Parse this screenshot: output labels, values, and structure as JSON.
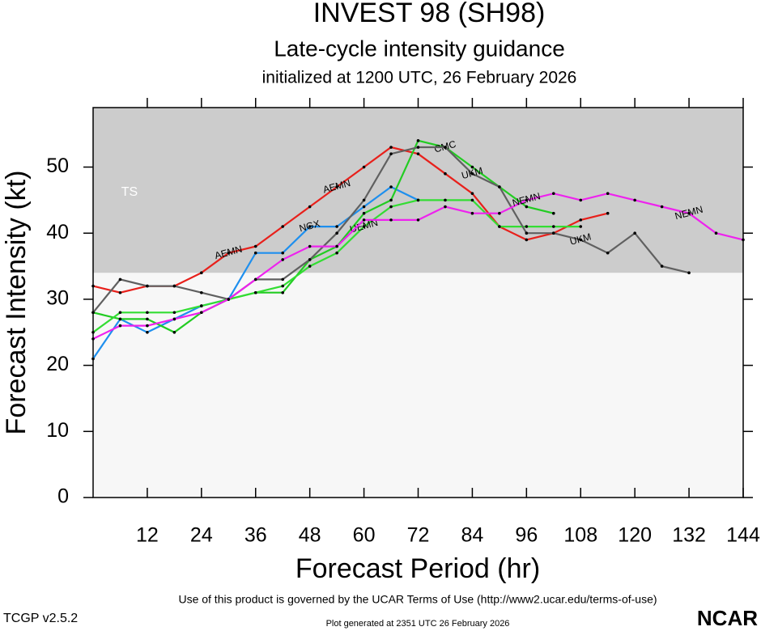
{
  "chart_data": {
    "type": "line",
    "title": "INVEST 98 (SH98)",
    "subtitle": "Late-cycle intensity guidance",
    "initialized": "initialized at 1200 UTC, 26 February 2026",
    "x_label": "Forecast Period (hr)",
    "y_label": "Forecast Intensity (kt)",
    "xlim": [
      0,
      144
    ],
    "xticks": [
      12,
      24,
      36,
      48,
      60,
      72,
      84,
      96,
      108,
      120,
      132,
      144
    ],
    "ylim": [
      0,
      59
    ],
    "yticks": [
      0,
      10,
      20,
      30,
      40,
      50
    ],
    "ts_threshold": 34,
    "ts_label": "TS",
    "x": [
      0,
      6,
      12,
      18,
      24,
      30,
      36,
      42,
      48,
      54,
      60,
      66,
      72,
      78,
      84,
      90,
      96,
      102,
      108,
      114,
      120,
      126,
      132,
      138,
      144
    ],
    "series": [
      {
        "name": "AEMN",
        "color": "#e8201b",
        "values": [
          32,
          31,
          32,
          32,
          34,
          37,
          38,
          41,
          44,
          47,
          50,
          53,
          52,
          49,
          46,
          41,
          39,
          40,
          42,
          43,
          null,
          null,
          null,
          null,
          null
        ]
      },
      {
        "name": "NGX",
        "color": "#1e8fee",
        "values": [
          21,
          27,
          25,
          27,
          29,
          30,
          37,
          37,
          41,
          41,
          44,
          47,
          45,
          null,
          null,
          null,
          null,
          null,
          null,
          null,
          null,
          null,
          null,
          null,
          null
        ]
      },
      {
        "name": "CMC",
        "color": "#22cc22",
        "values": [
          28,
          27,
          27,
          25,
          28,
          30,
          31,
          31,
          36,
          38,
          43,
          45,
          54,
          53,
          50,
          47,
          44,
          43,
          null,
          null,
          null,
          null,
          null,
          null,
          null
        ]
      },
      {
        "name": "UEMN",
        "color": "#33dd33",
        "values": [
          25,
          28,
          28,
          28,
          29,
          30,
          31,
          32,
          35,
          37,
          41,
          44,
          45,
          45,
          45,
          41,
          41,
          41,
          41,
          null,
          null,
          null,
          null,
          null,
          null
        ]
      },
      {
        "name": "UKM",
        "color": "#606060",
        "values": [
          28,
          33,
          32,
          32,
          31,
          30,
          33,
          33,
          36,
          40,
          45,
          52,
          53,
          53,
          49,
          47,
          40,
          40,
          39,
          37,
          40,
          35,
          34,
          null,
          null
        ]
      },
      {
        "name": "NEMN",
        "color": "#ee22ee",
        "values": [
          24,
          26,
          26,
          27,
          28,
          30,
          33,
          36,
          38,
          38,
          42,
          42,
          42,
          44,
          43,
          43,
          45,
          46,
          45,
          46,
          45,
          44,
          43,
          40,
          39
        ]
      }
    ],
    "footer": "Use of this product is governed by the UCAR Terms of Use (http://www2.ucar.edu/terms-of-use)",
    "version": "TCGP v2.5.2",
    "generated": "Plot generated at 2351 UTC   26 February 2026",
    "logo": "NCAR"
  }
}
